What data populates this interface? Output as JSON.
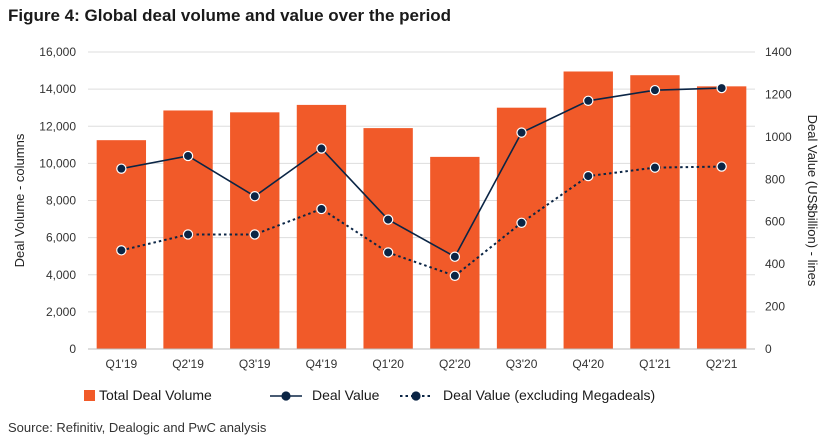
{
  "title": {
    "prefix": "Figure 4:",
    "text": "Global deal volume and value over the period"
  },
  "source": "Source: Refinitiv, Dealogic and PwC analysis",
  "colors": {
    "bar": "#f15a29",
    "line": "#0b2545",
    "grid": "#dddddd",
    "axis": "#333333"
  },
  "chart_data": {
    "type": "bar",
    "categories": [
      "Q1'19",
      "Q2'19",
      "Q3'19",
      "Q4'19",
      "Q1'20",
      "Q2'20",
      "Q3'20",
      "Q4'20",
      "Q1'21",
      "Q2'21"
    ],
    "series": [
      {
        "name": "Total Deal Volume",
        "kind": "bar",
        "axis": "left",
        "values": [
          11250,
          12850,
          12750,
          13150,
          11900,
          10350,
          13000,
          14950,
          14750,
          14150
        ]
      },
      {
        "name": "Deal Value",
        "kind": "line",
        "axis": "right",
        "style": "solid",
        "values": [
          850,
          910,
          720,
          945,
          610,
          435,
          1020,
          1170,
          1220,
          1230
        ]
      },
      {
        "name": "Deal Value (excluding Megadeals)",
        "kind": "line",
        "axis": "right",
        "style": "dotted",
        "values": [
          465,
          540,
          540,
          660,
          455,
          345,
          595,
          815,
          855,
          860
        ]
      }
    ],
    "ylabel": "Deal Volume - columns",
    "y2label": "Deal Value (US$billion) - lines",
    "ylim": [
      0,
      16000
    ],
    "yticks": [
      0,
      2000,
      4000,
      6000,
      8000,
      10000,
      12000,
      14000,
      16000
    ],
    "ytick_labels": [
      "0",
      "2,000",
      "4,000",
      "6,000",
      "8,000",
      "10,000",
      "12,000",
      "14,000",
      "16,000"
    ],
    "y2lim": [
      0,
      1400
    ],
    "y2ticks": [
      0,
      200,
      400,
      600,
      800,
      1000,
      1200,
      1400
    ],
    "y2tick_labels": [
      "0",
      "200",
      "400",
      "600",
      "800",
      "1000",
      "1200",
      "1400"
    ],
    "grid": true,
    "legend": "bottom"
  }
}
